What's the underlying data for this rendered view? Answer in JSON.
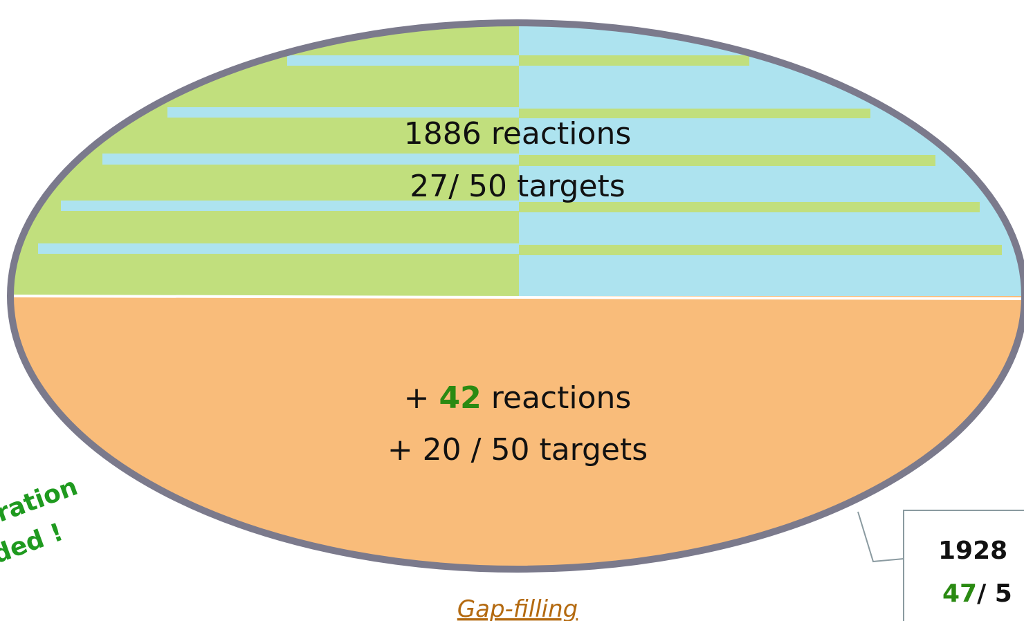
{
  "top": {
    "line1": "1886 reactions",
    "line2": "27/ 50 targets"
  },
  "bottom": {
    "line1_prefix": "+ ",
    "line1_number": "42",
    "line1_suffix": " reactions",
    "line2": "+ 20 / 50 targets"
  },
  "caption": "Gap-filling",
  "side_note": [
    "ration",
    "ded !"
  ],
  "callout": {
    "line1": "1928",
    "line2_number": "47",
    "line2_suffix": "/ 5"
  }
}
